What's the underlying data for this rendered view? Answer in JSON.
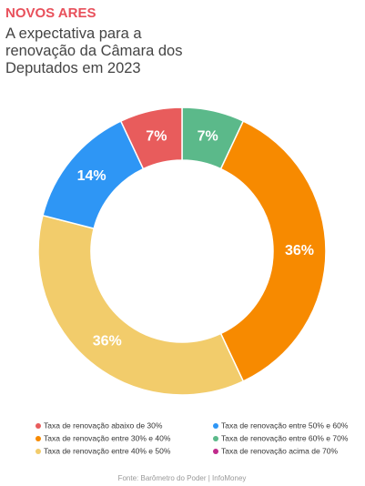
{
  "chart_data": {
    "type": "donut",
    "title": "NOVOS ARES",
    "subtitle": [
      "A expectativa para a",
      "renovação da Câmara dos",
      "Deputados em 2023"
    ],
    "categories": [
      "Taxa de renovação entre 60% e 70%",
      "Taxa de renovação entre 30% e 40%",
      "Taxa de renovação entre 40% e 50%",
      "Taxa de renovação entre 50% e 60%",
      "Taxa de renovação abaixo de 30%",
      "Taxa de renovação acima de 70%"
    ],
    "values": [
      7,
      36,
      36,
      14,
      7,
      0
    ],
    "value_labels": [
      "7%",
      "36%",
      "36%",
      "14%",
      "7%",
      null
    ],
    "colors": [
      "#5bb98a",
      "#f78a00",
      "#f2cc6b",
      "#2e96f5",
      "#e85c5c",
      "#c02a8c"
    ],
    "source": "Fonte: Barômetro do Poder | InfoMoney"
  }
}
